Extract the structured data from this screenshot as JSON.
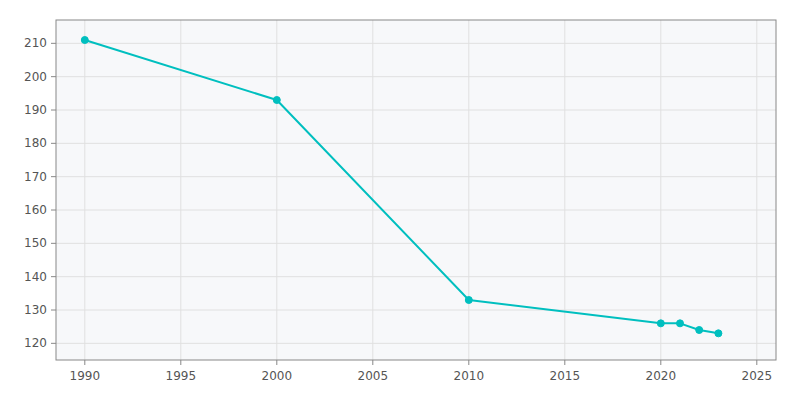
{
  "chart_data": {
    "type": "line",
    "x": [
      1990,
      2000,
      2010,
      2020,
      2021,
      2022,
      2023
    ],
    "values": [
      211,
      193,
      133,
      126,
      126,
      124,
      123
    ],
    "color": "#00BFBF",
    "marker": "circle",
    "xlim": [
      1988.5,
      2026
    ],
    "ylim": [
      115,
      217
    ],
    "xticks": [
      1990,
      1995,
      2000,
      2005,
      2010,
      2015,
      2020,
      2025
    ],
    "yticks": [
      120,
      130,
      140,
      150,
      160,
      170,
      180,
      190,
      200,
      210
    ],
    "grid": true
  }
}
